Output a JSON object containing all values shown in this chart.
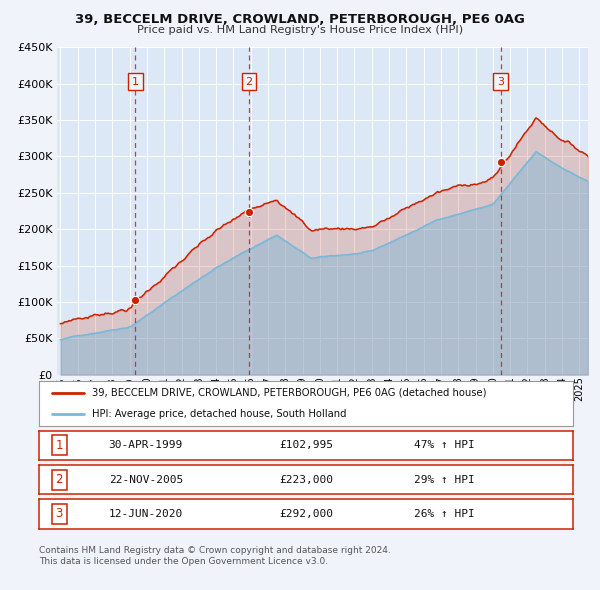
{
  "title": "39, BECCELM DRIVE, CROWLAND, PETERBOROUGH, PE6 0AG",
  "subtitle": "Price paid vs. HM Land Registry's House Price Index (HPI)",
  "hpi_color": "#7ab8d9",
  "price_color": "#cc2200",
  "background_color": "#f0f4fa",
  "plot_bg_color": "#dce8f5",
  "ylim": [
    0,
    450000
  ],
  "yticks": [
    0,
    50000,
    100000,
    150000,
    200000,
    250000,
    300000,
    350000,
    400000,
    450000
  ],
  "xlim_start": 1994.8,
  "xlim_end": 2025.5,
  "xticks": [
    1995,
    1996,
    1997,
    1998,
    1999,
    2000,
    2001,
    2002,
    2003,
    2004,
    2005,
    2006,
    2007,
    2008,
    2009,
    2010,
    2011,
    2012,
    2013,
    2014,
    2015,
    2016,
    2017,
    2018,
    2019,
    2020,
    2021,
    2022,
    2023,
    2024,
    2025
  ],
  "sales": [
    {
      "num": 1,
      "date_dec": 1999.33,
      "price": 102995,
      "label": "30-APR-1999",
      "price_str": "£102,995",
      "pct": "47%",
      "dir": "↑"
    },
    {
      "num": 2,
      "date_dec": 2005.9,
      "price": 223000,
      "label": "22-NOV-2005",
      "price_str": "£223,000",
      "pct": "29%",
      "dir": "↑"
    },
    {
      "num": 3,
      "date_dec": 2020.45,
      "price": 292000,
      "label": "12-JUN-2020",
      "price_str": "£292,000",
      "pct": "26%",
      "dir": "↑"
    }
  ],
  "legend_line1": "39, BECCELM DRIVE, CROWLAND, PETERBOROUGH, PE6 0AG (detached house)",
  "legend_line2": "HPI: Average price, detached house, South Holland",
  "footer1": "Contains HM Land Registry data © Crown copyright and database right 2024.",
  "footer2": "This data is licensed under the Open Government Licence v3.0."
}
